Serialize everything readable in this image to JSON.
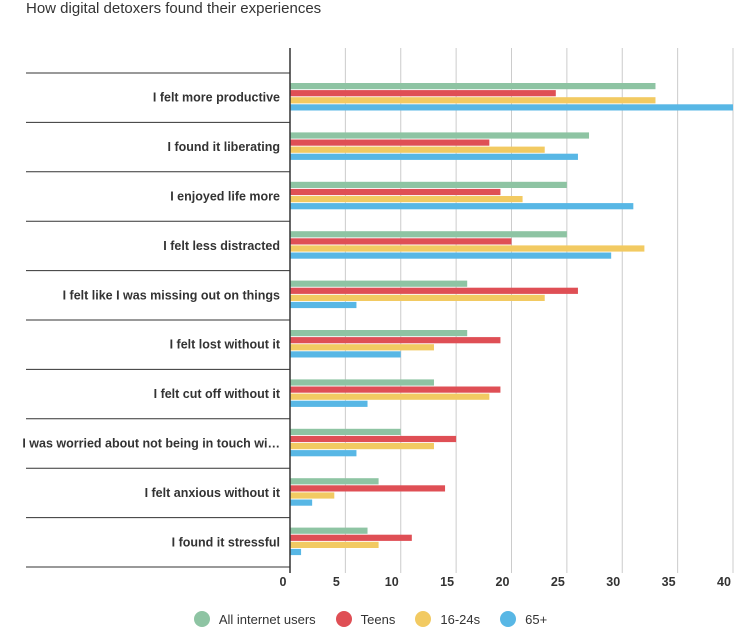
{
  "chart_data": {
    "type": "bar",
    "orientation": "horizontal",
    "title": "How digital detoxers found their experiences",
    "categories": [
      "I felt more productive",
      "I found it liberating",
      "I enjoyed life more",
      "I felt less distracted",
      "I felt like I was missing out on things",
      "I felt lost without it",
      "I felt cut off without it",
      "I was worried about not being in touch wi…",
      "I felt anxious without it",
      "I found it stressful"
    ],
    "series": [
      {
        "name": "All internet users",
        "color": "#8ec4a3",
        "values": [
          33,
          27,
          25,
          25,
          16,
          16,
          13,
          10,
          8,
          7
        ]
      },
      {
        "name": "Teens",
        "color": "#df4f55",
        "values": [
          24,
          18,
          19,
          20,
          26,
          19,
          19,
          15,
          14,
          11
        ]
      },
      {
        "name": "16-24s",
        "color": "#f2ca62",
        "values": [
          33,
          23,
          21,
          32,
          23,
          13,
          18,
          13,
          4,
          8
        ]
      },
      {
        "name": "65+",
        "color": "#58b7e5",
        "values": [
          40,
          26,
          31,
          29,
          6,
          10,
          7,
          6,
          2,
          1
        ]
      }
    ],
    "xlim": [
      0,
      40
    ],
    "x_ticks": [
      "0",
      "5",
      "10",
      "15",
      "20",
      "25",
      "30",
      "35",
      "40"
    ],
    "grid": true,
    "legend_position": "bottom"
  }
}
